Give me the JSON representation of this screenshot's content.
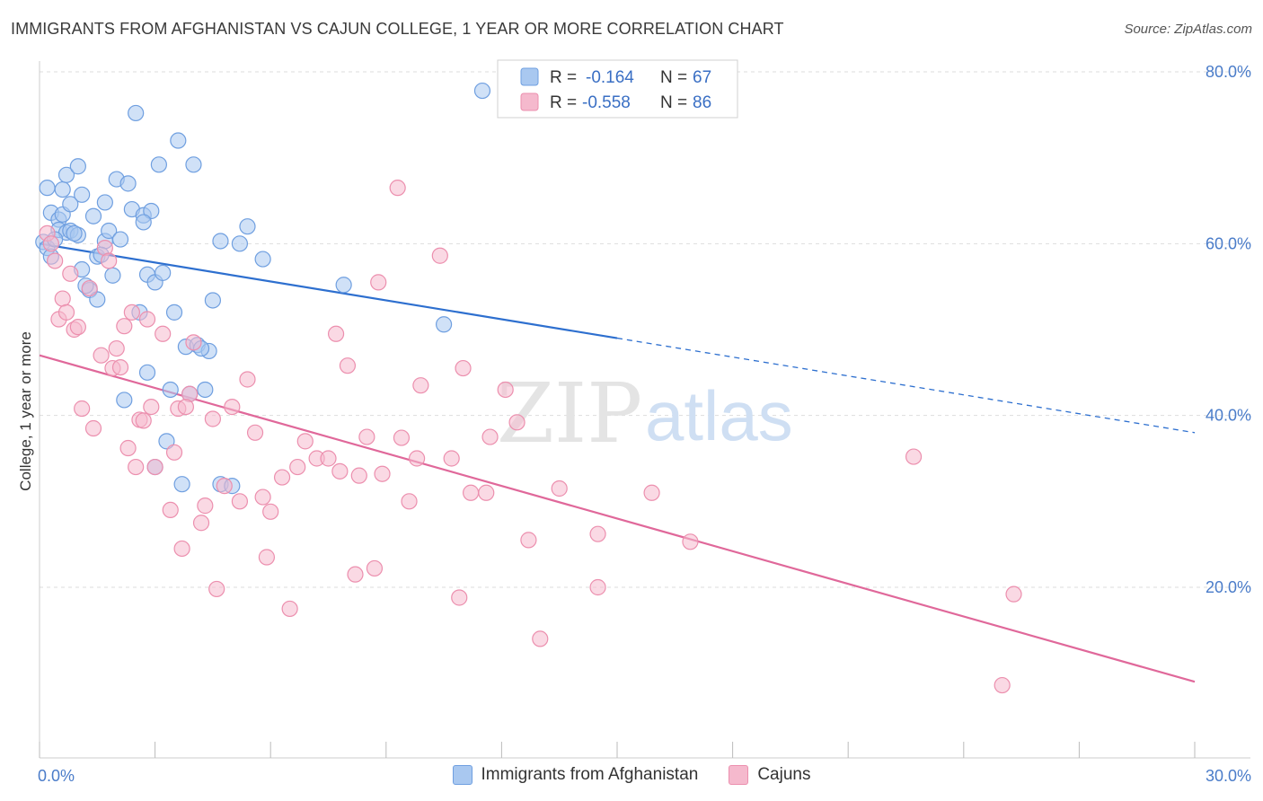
{
  "title": "IMMIGRANTS FROM AFGHANISTAN VS CAJUN COLLEGE, 1 YEAR OR MORE CORRELATION CHART",
  "source": "Source: ZipAtlas.com",
  "watermark": {
    "zip": "ZIP",
    "atlas": "atlas"
  },
  "legend": {
    "blue": {
      "r_label": "R =",
      "r_value": "-0.164",
      "n_label": "N =",
      "n_value": "67"
    },
    "pink": {
      "r_label": "R =",
      "r_value": "-0.558",
      "n_label": "N =",
      "n_value": "86"
    }
  },
  "colors": {
    "blue_fill": "#a9c8f0",
    "blue_stroke": "#6f9fe0",
    "blue_line": "#2d6fcf",
    "pink_fill": "#f5b9cd",
    "pink_stroke": "#ec8fae",
    "pink_line": "#e0689a",
    "grid": "#dddddd",
    "tick_label": "#4a7cc9"
  },
  "chart_data": {
    "type": "scatter",
    "xlabel": "",
    "ylabel": "College, 1 year or more",
    "xlim": [
      0,
      30
    ],
    "ylim": [
      0,
      82
    ],
    "x_tick_labels": [
      {
        "value": 0,
        "label": "0.0%"
      },
      {
        "value": 30,
        "label": "30.0%"
      }
    ],
    "y_tick_labels": [
      {
        "value": 20,
        "label": "20.0%"
      },
      {
        "value": 40,
        "label": "40.0%"
      },
      {
        "value": 60,
        "label": "60.0%"
      },
      {
        "value": 80,
        "label": "80.0%"
      }
    ],
    "grid": true,
    "legend_placement": "top-center",
    "series": [
      {
        "name": "Immigrants from Afghanistan",
        "color": "blue",
        "trend": {
          "x0": 0,
          "y0": 60.0,
          "x1": 15,
          "y1": 49.0,
          "dash_to": 30,
          "dash_y": 38.0
        },
        "points": [
          [
            0.1,
            60.2
          ],
          [
            0.2,
            59.5
          ],
          [
            0.2,
            66.5
          ],
          [
            0.3,
            63.6
          ],
          [
            0.3,
            58.5
          ],
          [
            0.5,
            62.8
          ],
          [
            0.5,
            61.6
          ],
          [
            0.6,
            63.4
          ],
          [
            0.6,
            66.3
          ],
          [
            0.7,
            68.0
          ],
          [
            0.7,
            61.3
          ],
          [
            0.8,
            61.5
          ],
          [
            0.8,
            64.6
          ],
          [
            1.0,
            69.0
          ],
          [
            1.0,
            61.0
          ],
          [
            1.1,
            65.7
          ],
          [
            1.1,
            57.0
          ],
          [
            1.3,
            54.6
          ],
          [
            1.4,
            63.2
          ],
          [
            1.5,
            58.5
          ],
          [
            1.5,
            53.5
          ],
          [
            1.7,
            64.8
          ],
          [
            1.7,
            60.3
          ],
          [
            1.8,
            61.5
          ],
          [
            1.9,
            56.3
          ],
          [
            2.0,
            67.5
          ],
          [
            2.1,
            60.5
          ],
          [
            2.3,
            67.0
          ],
          [
            2.4,
            64.0
          ],
          [
            2.5,
            75.2
          ],
          [
            2.6,
            52.0
          ],
          [
            2.7,
            63.3
          ],
          [
            2.8,
            56.4
          ],
          [
            2.9,
            63.8
          ],
          [
            2.8,
            45.0
          ],
          [
            2.2,
            41.8
          ],
          [
            3.0,
            55.5
          ],
          [
            3.0,
            34.0
          ],
          [
            3.1,
            69.2
          ],
          [
            3.2,
            56.6
          ],
          [
            3.3,
            37.0
          ],
          [
            3.4,
            43.0
          ],
          [
            3.5,
            52.0
          ],
          [
            3.6,
            72.0
          ],
          [
            3.7,
            32.0
          ],
          [
            3.8,
            48.0
          ],
          [
            3.9,
            42.5
          ],
          [
            4.0,
            69.2
          ],
          [
            4.1,
            48.2
          ],
          [
            4.3,
            43.0
          ],
          [
            4.4,
            47.5
          ],
          [
            4.5,
            53.4
          ],
          [
            4.7,
            32.0
          ],
          [
            4.7,
            60.3
          ],
          [
            5.2,
            60.0
          ],
          [
            5.4,
            62.0
          ],
          [
            5.8,
            58.2
          ],
          [
            7.9,
            55.2
          ],
          [
            10.5,
            50.6
          ],
          [
            11.5,
            77.8
          ],
          [
            0.4,
            60.5
          ],
          [
            0.9,
            61.2
          ],
          [
            1.2,
            55.1
          ],
          [
            1.6,
            58.7
          ],
          [
            2.7,
            62.5
          ],
          [
            4.2,
            47.8
          ],
          [
            5.0,
            31.8
          ]
        ]
      },
      {
        "name": "Cajuns",
        "color": "pink",
        "trend": {
          "x0": 0,
          "y0": 47.0,
          "x1": 30,
          "y1": 9.0
        },
        "points": [
          [
            0.2,
            61.2
          ],
          [
            0.3,
            60.0
          ],
          [
            0.4,
            58.0
          ],
          [
            0.5,
            51.2
          ],
          [
            0.6,
            53.6
          ],
          [
            0.7,
            52.0
          ],
          [
            0.8,
            56.5
          ],
          [
            0.9,
            50.0
          ],
          [
            1.0,
            50.3
          ],
          [
            1.1,
            40.8
          ],
          [
            1.3,
            54.8
          ],
          [
            1.4,
            38.5
          ],
          [
            1.6,
            47.0
          ],
          [
            1.7,
            59.5
          ],
          [
            1.8,
            58.0
          ],
          [
            1.9,
            45.5
          ],
          [
            2.0,
            47.8
          ],
          [
            2.1,
            45.6
          ],
          [
            2.2,
            50.4
          ],
          [
            2.3,
            36.2
          ],
          [
            2.4,
            52.0
          ],
          [
            2.5,
            34.0
          ],
          [
            2.6,
            39.5
          ],
          [
            2.7,
            39.4
          ],
          [
            2.9,
            41.0
          ],
          [
            3.0,
            34.0
          ],
          [
            3.2,
            49.5
          ],
          [
            3.4,
            29.0
          ],
          [
            3.5,
            35.7
          ],
          [
            3.6,
            40.8
          ],
          [
            3.7,
            24.5
          ],
          [
            3.9,
            42.5
          ],
          [
            4.0,
            48.5
          ],
          [
            4.2,
            27.5
          ],
          [
            4.3,
            29.5
          ],
          [
            4.5,
            39.6
          ],
          [
            4.6,
            19.8
          ],
          [
            4.8,
            31.8
          ],
          [
            5.0,
            41.0
          ],
          [
            5.2,
            30.0
          ],
          [
            5.4,
            44.2
          ],
          [
            5.6,
            38.0
          ],
          [
            5.8,
            30.5
          ],
          [
            5.9,
            23.5
          ],
          [
            6.0,
            28.8
          ],
          [
            6.3,
            32.8
          ],
          [
            6.5,
            17.5
          ],
          [
            6.7,
            34.0
          ],
          [
            6.9,
            37.0
          ],
          [
            7.2,
            35.0
          ],
          [
            7.5,
            35.0
          ],
          [
            7.7,
            49.5
          ],
          [
            7.8,
            33.5
          ],
          [
            8.0,
            45.8
          ],
          [
            8.2,
            21.5
          ],
          [
            8.3,
            33.0
          ],
          [
            8.5,
            37.5
          ],
          [
            8.7,
            22.2
          ],
          [
            8.8,
            55.5
          ],
          [
            8.9,
            33.2
          ],
          [
            9.3,
            66.5
          ],
          [
            9.4,
            37.4
          ],
          [
            9.6,
            30.0
          ],
          [
            9.9,
            43.5
          ],
          [
            10.4,
            58.6
          ],
          [
            10.7,
            35.0
          ],
          [
            10.9,
            18.8
          ],
          [
            11.0,
            45.5
          ],
          [
            11.2,
            31.0
          ],
          [
            11.6,
            31.0
          ],
          [
            11.7,
            37.5
          ],
          [
            12.1,
            43.0
          ],
          [
            12.4,
            39.2
          ],
          [
            12.7,
            25.5
          ],
          [
            13.0,
            14.0
          ],
          [
            13.5,
            31.5
          ],
          [
            14.5,
            20.0
          ],
          [
            14.5,
            26.2
          ],
          [
            15.9,
            31.0
          ],
          [
            16.9,
            25.3
          ],
          [
            22.7,
            35.2
          ],
          [
            25.0,
            8.6
          ],
          [
            25.3,
            19.2
          ],
          [
            9.8,
            35.0
          ],
          [
            3.8,
            41.0
          ],
          [
            2.8,
            51.2
          ]
        ]
      }
    ]
  }
}
